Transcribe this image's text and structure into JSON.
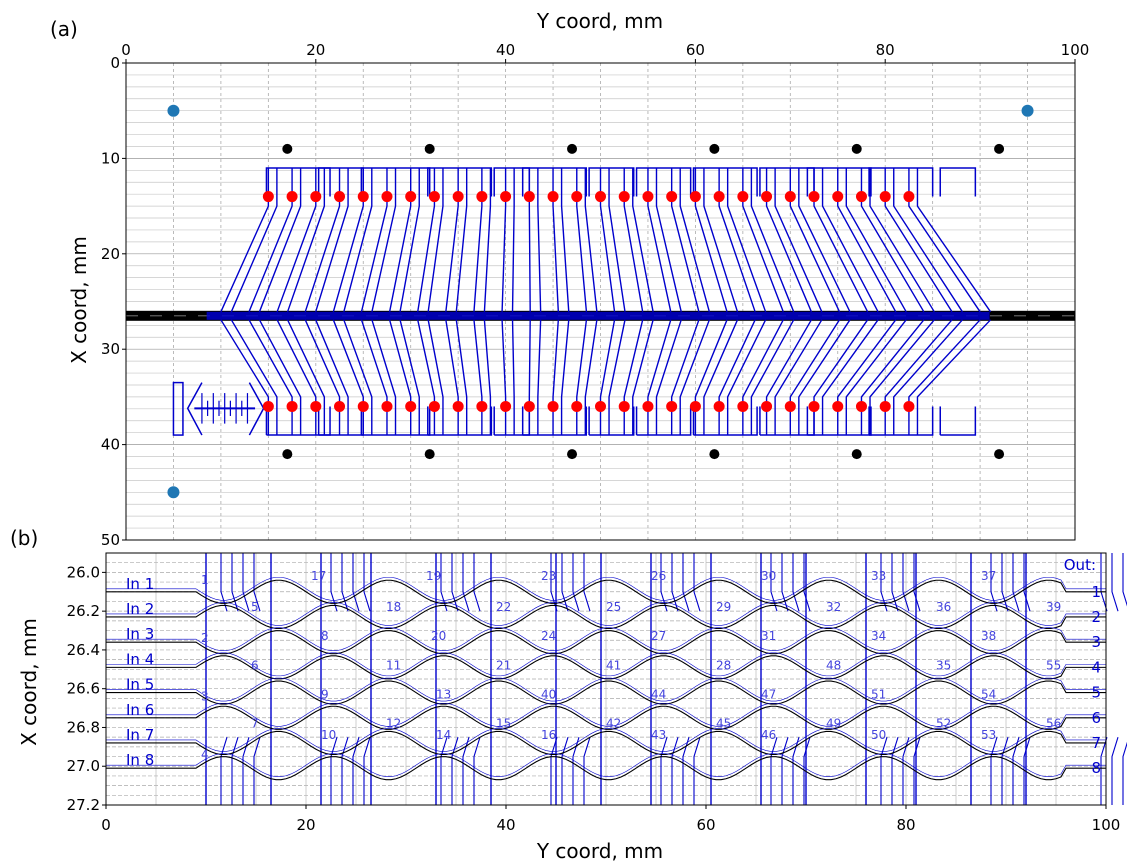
{
  "chart_data": [
    {
      "panel_label": "(a)",
      "type": "scatter",
      "xlabel": "Y coord, mm",
      "ylabel": "X coord, mm",
      "xlim": [
        0,
        100
      ],
      "ylim": [
        50,
        0
      ],
      "x_ticks": [
        0,
        20,
        40,
        60,
        80,
        100
      ],
      "y_ticks": [
        0,
        10,
        20,
        30,
        40,
        50
      ],
      "x_axis_position": "top",
      "y_inverted": true,
      "grid": true,
      "series": [
        {
          "marker_color": "#1f77b4",
          "x": [
            5,
            95,
            5
          ],
          "y": [
            5,
            5,
            45
          ]
        },
        {
          "marker_color": "#000000",
          "x": [
            17,
            32,
            47,
            62,
            77,
            92,
            17,
            32,
            47,
            62,
            77,
            92
          ],
          "y": [
            9,
            9,
            9,
            9,
            9,
            9,
            41,
            41,
            41,
            41,
            41,
            41
          ]
        },
        {
          "marker_color": "#ff0000",
          "x_start": 15,
          "x_step": 2.5,
          "count": 28,
          "y": [
            14,
            36
          ]
        }
      ],
      "waveguide_bus_y": 26.5,
      "colors": {
        "waveguides": "#0000cc",
        "bus": "#000000"
      }
    },
    {
      "panel_label": "(b)",
      "type": "diagram",
      "xlabel": "Y coord, mm",
      "ylabel": "X coord, mm",
      "xlim": [
        0,
        100
      ],
      "ylim": [
        27.2,
        25.9
      ],
      "x_ticks": [
        0,
        20,
        40,
        60,
        80,
        100
      ],
      "y_ticks": [
        "26.0",
        "26.2",
        "26.4",
        "26.6",
        "26.8",
        "27.0",
        "27.2"
      ],
      "inputs": [
        "In 1",
        "In 2",
        "In 3",
        "In 4",
        "In 5",
        "In 6",
        "In 7",
        "In 8"
      ],
      "outputs_title": "Out:",
      "outputs": [
        "1",
        "2",
        "3",
        "4",
        "5",
        "6",
        "7",
        "8"
      ],
      "coupler_numbers": [
        {
          "n": "1",
          "x": 9.5,
          "y": 26.06
        },
        {
          "n": "2",
          "x": 9.5,
          "y": 26.36
        },
        {
          "n": "3",
          "x": 9.5,
          "y": 26.66
        },
        {
          "n": "4",
          "x": 9.5,
          "y": 26.96
        },
        {
          "n": "5",
          "x": 14.5,
          "y": 26.2
        },
        {
          "n": "6",
          "x": 14.5,
          "y": 26.5
        },
        {
          "n": "7",
          "x": 14.5,
          "y": 26.8
        },
        {
          "n": "17",
          "x": 20.5,
          "y": 26.04
        },
        {
          "n": "8",
          "x": 21.5,
          "y": 26.35
        },
        {
          "n": "9",
          "x": 21.5,
          "y": 26.65
        },
        {
          "n": "10",
          "x": 21.5,
          "y": 26.86
        },
        {
          "n": "18",
          "x": 28,
          "y": 26.2
        },
        {
          "n": "11",
          "x": 28,
          "y": 26.5
        },
        {
          "n": "12",
          "x": 28,
          "y": 26.8
        },
        {
          "n": "19",
          "x": 32,
          "y": 26.04
        },
        {
          "n": "20",
          "x": 32.5,
          "y": 26.35
        },
        {
          "n": "13",
          "x": 33,
          "y": 26.65
        },
        {
          "n": "14",
          "x": 33,
          "y": 26.86
        },
        {
          "n": "22",
          "x": 39,
          "y": 26.2
        },
        {
          "n": "21",
          "x": 39,
          "y": 26.5
        },
        {
          "n": "15",
          "x": 39,
          "y": 26.8
        },
        {
          "n": "23",
          "x": 43.5,
          "y": 26.04
        },
        {
          "n": "24",
          "x": 43.5,
          "y": 26.35
        },
        {
          "n": "40",
          "x": 43.5,
          "y": 26.65
        },
        {
          "n": "16",
          "x": 43.5,
          "y": 26.86
        },
        {
          "n": "25",
          "x": 50,
          "y": 26.2
        },
        {
          "n": "41",
          "x": 50,
          "y": 26.5
        },
        {
          "n": "42",
          "x": 50,
          "y": 26.8
        },
        {
          "n": "26",
          "x": 54.5,
          "y": 26.04
        },
        {
          "n": "27",
          "x": 54.5,
          "y": 26.35
        },
        {
          "n": "44",
          "x": 54.5,
          "y": 26.65
        },
        {
          "n": "43",
          "x": 54.5,
          "y": 26.86
        },
        {
          "n": "29",
          "x": 61,
          "y": 26.2
        },
        {
          "n": "28",
          "x": 61,
          "y": 26.5
        },
        {
          "n": "45",
          "x": 61,
          "y": 26.8
        },
        {
          "n": "30",
          "x": 65.5,
          "y": 26.04
        },
        {
          "n": "31",
          "x": 65.5,
          "y": 26.35
        },
        {
          "n": "47",
          "x": 65.5,
          "y": 26.65
        },
        {
          "n": "46",
          "x": 65.5,
          "y": 26.86
        },
        {
          "n": "32",
          "x": 72,
          "y": 26.2
        },
        {
          "n": "48",
          "x": 72,
          "y": 26.5
        },
        {
          "n": "49",
          "x": 72,
          "y": 26.8
        },
        {
          "n": "33",
          "x": 76.5,
          "y": 26.04
        },
        {
          "n": "34",
          "x": 76.5,
          "y": 26.35
        },
        {
          "n": "51",
          "x": 76.5,
          "y": 26.65
        },
        {
          "n": "50",
          "x": 76.5,
          "y": 26.86
        },
        {
          "n": "36",
          "x": 83,
          "y": 26.2
        },
        {
          "n": "35",
          "x": 83,
          "y": 26.5
        },
        {
          "n": "52",
          "x": 83,
          "y": 26.8
        },
        {
          "n": "37",
          "x": 87.5,
          "y": 26.04
        },
        {
          "n": "38",
          "x": 87.5,
          "y": 26.35
        },
        {
          "n": "54",
          "x": 87.5,
          "y": 26.65
        },
        {
          "n": "53",
          "x": 87.5,
          "y": 26.86
        },
        {
          "n": "39",
          "x": 94,
          "y": 26.2
        },
        {
          "n": "55",
          "x": 94,
          "y": 26.5
        },
        {
          "n": "56",
          "x": 94,
          "y": 26.8
        }
      ],
      "colors": {
        "labels": "#0000cc",
        "coupler_numbers": "#4444dd",
        "waveguides": "#000000",
        "electrodes": "#0000cc"
      }
    }
  ]
}
